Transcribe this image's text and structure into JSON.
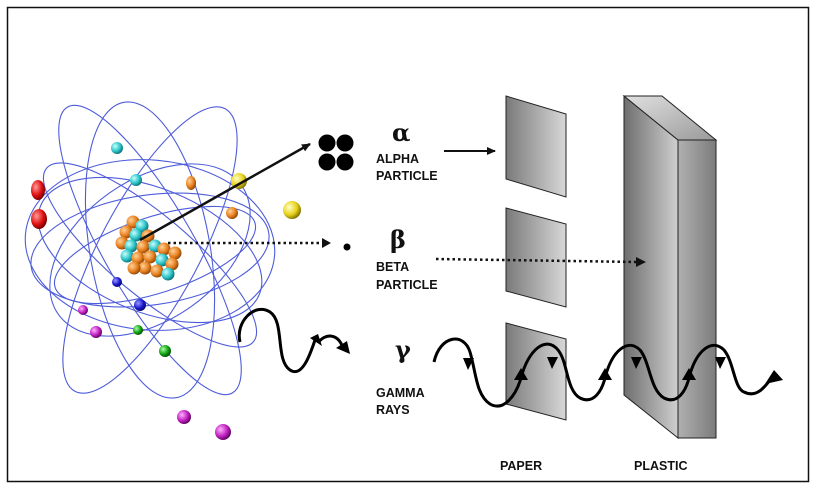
{
  "colors": {
    "frame": "#111111",
    "orbit": "#3b4bd6",
    "proton": "#e8801e",
    "neutron": "#2bc4c8",
    "barrier_dark": "#7a7a7a",
    "barrier_light": "#d8d8d8",
    "electrons": [
      "#e01010",
      "#e8d21a",
      "#2bc4c8",
      "#e8801e",
      "#1a1ad0",
      "#c020c0",
      "#10a010"
    ]
  },
  "radiation": {
    "alpha": {
      "symbol": "α",
      "line1": "ALPHA",
      "line2": "PARTICLE"
    },
    "beta": {
      "symbol": "β",
      "line1": "BETA",
      "line2": "PARTICLE"
    },
    "gamma": {
      "symbol": "γ",
      "line1": "GAMMA",
      "line2": "RAYS"
    }
  },
  "barriers": {
    "paper": {
      "label": "PAPER"
    },
    "plastic": {
      "label": "PLASTIC"
    }
  }
}
